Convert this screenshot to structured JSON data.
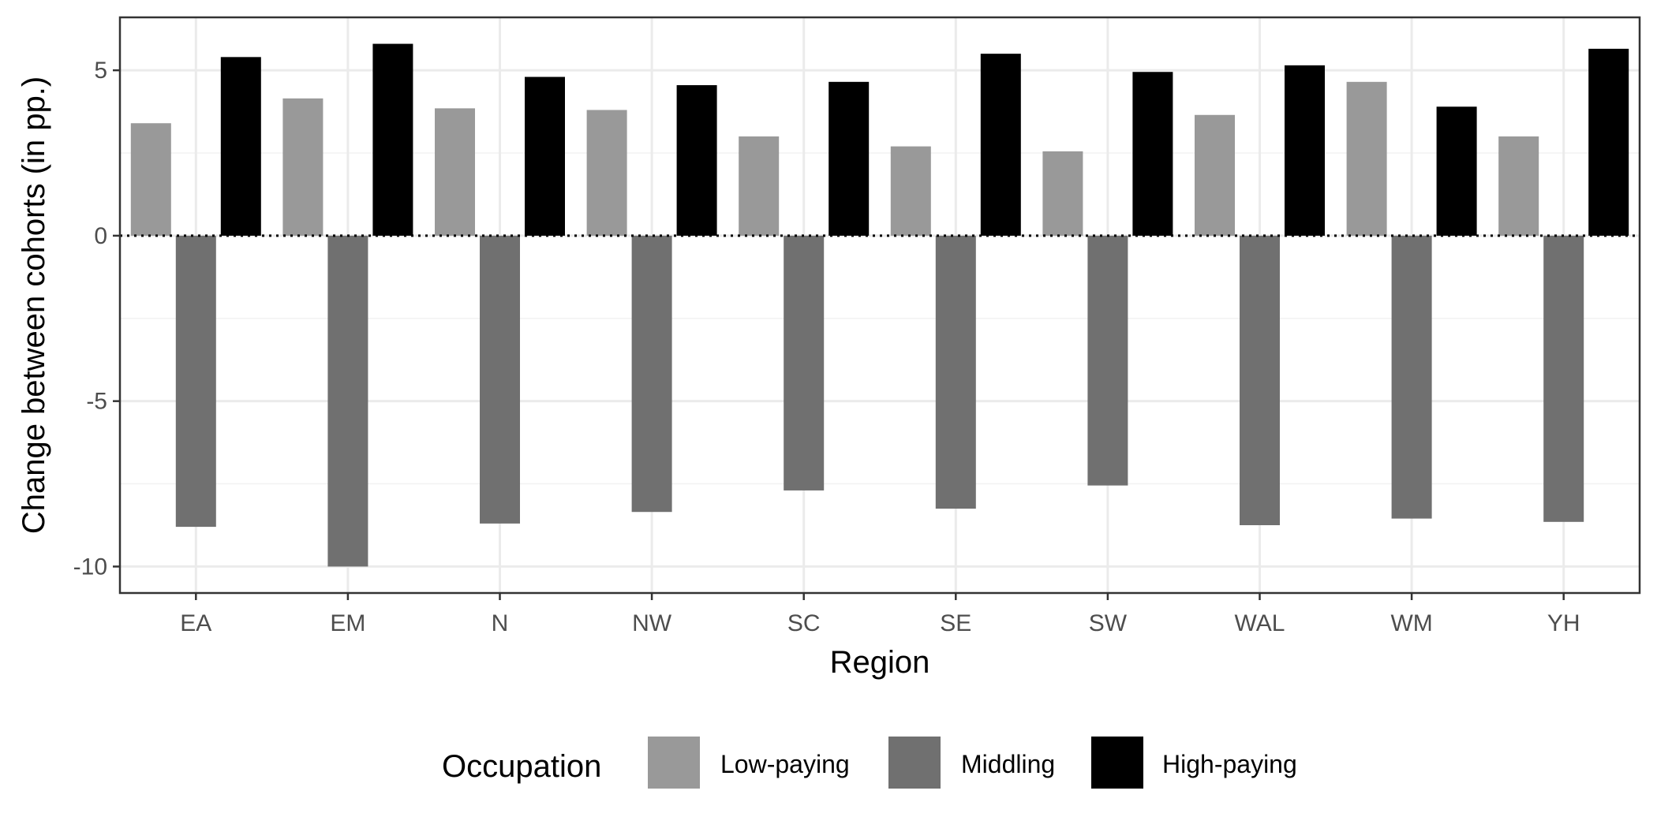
{
  "chart_data": {
    "type": "bar",
    "title": "",
    "xlabel": "Region",
    "ylabel": "Change between cohorts (in pp.)",
    "categories": [
      "EA",
      "EM",
      "N",
      "NW",
      "SC",
      "SE",
      "SW",
      "WAL",
      "WM",
      "YH"
    ],
    "series": [
      {
        "name": "Low-paying",
        "color": "#999999",
        "values": [
          3.4,
          4.15,
          3.85,
          3.8,
          3.0,
          2.7,
          2.55,
          3.65,
          4.65,
          3.0
        ]
      },
      {
        "name": "Middling",
        "color": "#707070",
        "values": [
          -8.8,
          -10.0,
          -8.7,
          -8.35,
          -7.7,
          -8.25,
          -7.55,
          -8.75,
          -8.55,
          -8.65
        ]
      },
      {
        "name": "High-paying",
        "color": "#000000",
        "values": [
          5.4,
          5.8,
          4.8,
          4.55,
          4.65,
          5.5,
          4.95,
          5.15,
          3.9,
          5.65
        ]
      }
    ],
    "ylim": [
      -10.8,
      6.6
    ],
    "yticks": [
      -10,
      -5,
      0,
      5
    ],
    "ytick_labels": [
      "-10",
      "-5",
      "0",
      "5"
    ],
    "reference_line": 0,
    "grid": true,
    "legend": {
      "title": "Occupation",
      "position": "bottom"
    }
  }
}
